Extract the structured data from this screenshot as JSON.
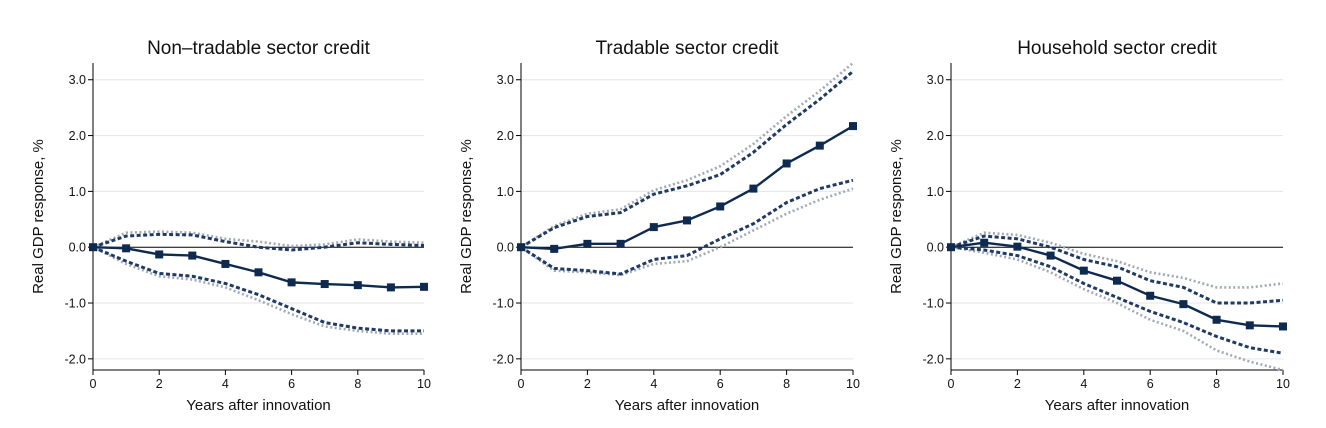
{
  "colors": {
    "main": "#0e2a4f",
    "band68": "#1f3a63",
    "band90": "#a2a9b6",
    "zero_line": "#000000",
    "grid": "#e6e6e6"
  },
  "chart_data": [
    {
      "type": "line",
      "title": "Non–tradable sector credit",
      "xlabel": "Years after innovation",
      "ylabel": "Real GDP response, %",
      "xlim": [
        0,
        10
      ],
      "ylim": [
        -2.2,
        3.3
      ],
      "xticks": [
        0,
        2,
        4,
        6,
        8,
        10
      ],
      "yticks": [
        -2,
        -1,
        0,
        1,
        2,
        3
      ],
      "yticklabels": [
        "-2.0",
        "-1.0",
        "0.0",
        "1.0",
        "2.0",
        "3.0"
      ],
      "x": [
        0,
        1,
        2,
        3,
        4,
        5,
        6,
        7,
        8,
        9,
        10
      ],
      "series": [
        {
          "role": "estimate",
          "values": [
            0.0,
            -0.02,
            -0.13,
            -0.15,
            -0.3,
            -0.45,
            -0.63,
            -0.66,
            -0.68,
            -0.72,
            -0.71
          ]
        },
        {
          "role": "band68_upper",
          "values": [
            0.0,
            0.2,
            0.23,
            0.22,
            0.1,
            0.0,
            -0.05,
            0.0,
            0.08,
            0.05,
            0.03
          ]
        },
        {
          "role": "band68_lower",
          "values": [
            0.0,
            -0.25,
            -0.47,
            -0.52,
            -0.65,
            -0.85,
            -1.1,
            -1.35,
            -1.45,
            -1.5,
            -1.5
          ]
        },
        {
          "role": "band90_upper",
          "values": [
            0.0,
            0.26,
            0.28,
            0.26,
            0.15,
            0.1,
            0.02,
            0.05,
            0.14,
            0.1,
            0.08
          ]
        },
        {
          "role": "band90_lower",
          "values": [
            0.0,
            -0.3,
            -0.52,
            -0.58,
            -0.72,
            -0.95,
            -1.2,
            -1.42,
            -1.5,
            -1.55,
            -1.55
          ]
        }
      ]
    },
    {
      "type": "line",
      "title": "Tradable sector credit",
      "xlabel": "Years after innovation",
      "ylabel": "Real GDP response, %",
      "xlim": [
        0,
        10
      ],
      "ylim": [
        -2.2,
        3.3
      ],
      "xticks": [
        0,
        2,
        4,
        6,
        8,
        10
      ],
      "yticks": [
        -2,
        -1,
        0,
        1,
        2,
        3
      ],
      "yticklabels": [
        "-2.0",
        "-1.0",
        "0.0",
        "1.0",
        "2.0",
        "3.0"
      ],
      "x": [
        0,
        1,
        2,
        3,
        4,
        5,
        6,
        7,
        8,
        9,
        10
      ],
      "series": [
        {
          "role": "estimate",
          "values": [
            0.0,
            -0.03,
            0.06,
            0.06,
            0.36,
            0.48,
            0.73,
            1.05,
            1.5,
            1.82,
            2.17
          ]
        },
        {
          "role": "band68_upper",
          "values": [
            0.0,
            0.35,
            0.55,
            0.62,
            0.95,
            1.1,
            1.3,
            1.7,
            2.2,
            2.65,
            3.15
          ]
        },
        {
          "role": "band68_lower",
          "values": [
            0.0,
            -0.38,
            -0.42,
            -0.48,
            -0.22,
            -0.15,
            0.15,
            0.42,
            0.8,
            1.05,
            1.2
          ]
        },
        {
          "role": "band90_upper",
          "values": [
            0.0,
            0.38,
            0.6,
            0.68,
            1.02,
            1.2,
            1.45,
            1.85,
            2.35,
            2.8,
            3.3
          ]
        },
        {
          "role": "band90_lower",
          "values": [
            0.0,
            -0.42,
            -0.45,
            -0.5,
            -0.3,
            -0.25,
            0.0,
            0.3,
            0.6,
            0.85,
            1.05
          ]
        }
      ]
    },
    {
      "type": "line",
      "title": "Household sector credit",
      "xlabel": "Years after innovation",
      "ylabel": "Real GDP response, %",
      "xlim": [
        0,
        10
      ],
      "ylim": [
        -2.2,
        3.3
      ],
      "xticks": [
        0,
        2,
        4,
        6,
        8,
        10
      ],
      "yticks": [
        -2,
        -1,
        0,
        1,
        2,
        3
      ],
      "yticklabels": [
        "-2.0",
        "-1.0",
        "0.0",
        "1.0",
        "2.0",
        "3.0"
      ],
      "x": [
        0,
        1,
        2,
        3,
        4,
        5,
        6,
        7,
        8,
        9,
        10
      ],
      "series": [
        {
          "role": "estimate",
          "values": [
            0.0,
            0.08,
            0.01,
            -0.15,
            -0.42,
            -0.6,
            -0.87,
            -1.02,
            -1.3,
            -1.4,
            -1.42
          ]
        },
        {
          "role": "band68_upper",
          "values": [
            0.0,
            0.2,
            0.15,
            0.0,
            -0.22,
            -0.35,
            -0.6,
            -0.72,
            -1.0,
            -1.0,
            -0.95
          ]
        },
        {
          "role": "band68_lower",
          "values": [
            0.0,
            -0.05,
            -0.15,
            -0.35,
            -0.65,
            -0.9,
            -1.15,
            -1.35,
            -1.6,
            -1.8,
            -1.9
          ]
        },
        {
          "role": "band90_upper",
          "values": [
            0.0,
            0.26,
            0.22,
            0.08,
            -0.12,
            -0.25,
            -0.45,
            -0.55,
            -0.72,
            -0.72,
            -0.65
          ]
        },
        {
          "role": "band90_lower",
          "values": [
            0.0,
            -0.1,
            -0.22,
            -0.45,
            -0.75,
            -1.0,
            -1.3,
            -1.5,
            -1.85,
            -2.05,
            -2.2
          ]
        }
      ]
    }
  ]
}
